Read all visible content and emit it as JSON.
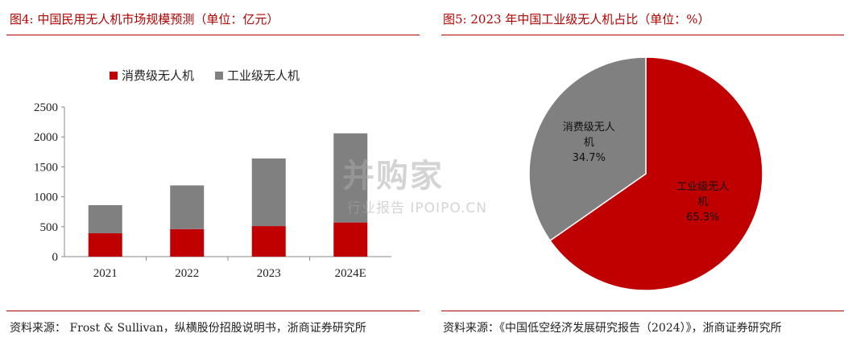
{
  "left_panel": {
    "title": "图4:  中国民用无人机市场规模预测（单位：亿元）",
    "source": "资料来源： Frost & Sullivan，纵横股份招股说明书，浙商证券研究所"
  },
  "right_panel": {
    "title": "图5:  2023 年中国工业级无人机占比（单位：%）",
    "source": "资料来源：《中国低空经济发展研究报告（2024）》，浙商证券研究所"
  },
  "watermark": {
    "main": "并购家",
    "sub": "行业报告 IPOIPO.CN"
  },
  "chart_data": [
    {
      "type": "bar",
      "stacked": true,
      "categories": [
        "2021",
        "2022",
        "2023",
        "2024E"
      ],
      "series": [
        {
          "name": "消费级无人机",
          "color": "#c00000",
          "values": [
            390,
            460,
            510,
            570
          ]
        },
        {
          "name": "工业级无人机",
          "color": "#808080",
          "values": [
            470,
            730,
            1130,
            1490
          ]
        }
      ],
      "yticks": [
        "0",
        "500",
        "1000",
        "1500",
        "2000",
        "2500"
      ],
      "ylim": [
        0,
        2500
      ],
      "grid": false,
      "legend_position": "top"
    },
    {
      "type": "pie",
      "slices": [
        {
          "label_line1": "工业级无人",
          "label_line2": "机",
          "value_text": "65.3%",
          "value": 65.3,
          "color": "#c00000"
        },
        {
          "label_line1": "消费级无人",
          "label_line2": "机",
          "value_text": "34.7%",
          "value": 34.7,
          "color": "#808080"
        }
      ]
    }
  ]
}
